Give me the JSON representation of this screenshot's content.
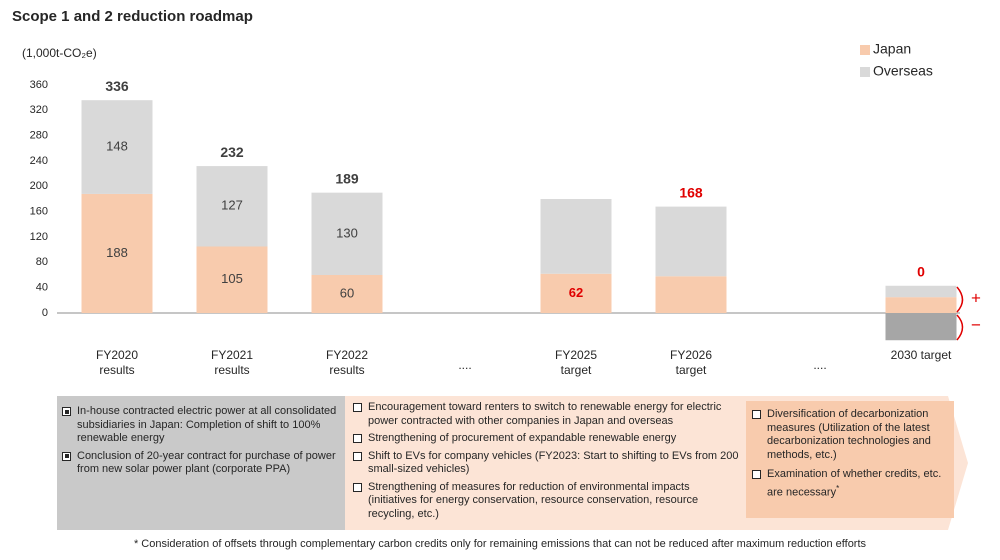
{
  "chart_data": {
    "type": "bar",
    "stacked": true,
    "title": "Scope 1 and 2 reduction roadmap",
    "y_label": "(1,000t-CO₂e)",
    "categories": [
      "FY2020 results",
      "FY2021 results",
      "FY2022 results",
      "....",
      "FY2025 target",
      "FY2026 target",
      "....",
      "2030 target"
    ],
    "series": [
      {
        "name": "Japan",
        "color": "#f8cbad",
        "values": [
          188,
          105,
          60,
          null,
          62,
          58,
          null,
          25
        ],
        "value_labels": [
          "188",
          "105",
          "60",
          null,
          "62",
          null,
          null,
          null
        ],
        "label_colors": [
          "#404040",
          "#404040",
          "#404040",
          null,
          "#e00000",
          null,
          null,
          null
        ]
      },
      {
        "name": "Overseas",
        "color": "#d9d9d9",
        "values": [
          148,
          127,
          130,
          null,
          118,
          110,
          null,
          18
        ],
        "value_labels": [
          "148",
          "127",
          "130",
          null,
          null,
          null,
          null,
          null
        ]
      }
    ],
    "offsets": {
      "color": "#a6a6a6",
      "values": [
        null,
        null,
        null,
        null,
        null,
        null,
        null,
        -43
      ]
    },
    "totals": {
      "values": [
        336,
        232,
        189,
        null,
        null,
        168,
        null,
        0
      ],
      "colors": [
        "#404040",
        "#404040",
        "#404040",
        null,
        null,
        "#e00000",
        null,
        "#e00000"
      ]
    },
    "ylim": [
      -50,
      360
    ],
    "yticks": [
      0,
      40,
      80,
      120,
      160,
      200,
      240,
      280,
      320,
      360
    ],
    "legend": "top-right",
    "annotations": [
      "+",
      "−"
    ]
  },
  "panels": [
    {
      "checked": true,
      "items": [
        "In-house contracted electric power at all consolidated subsidiaries in Japan: Completion of shift to 100% renewable energy",
        "Conclusion of 20-year contract for purchase of power from new solar power plant (corporate PPA)"
      ]
    },
    {
      "checked": false,
      "items": [
        "Encouragement toward renters to switch to renewable energy for electric power contracted with other companies in Japan and overseas",
        "Strengthening of procurement of expandable renewable energy",
        "Shift to EVs for company vehicles (FY2023: Start to shifting to EVs from 200 small-sized vehicles)",
        "Strengthening of measures for reduction of environmental impacts (initiatives for energy conservation, resource conservation, resource recycling, etc.)"
      ]
    },
    {
      "checked": false,
      "items": [
        "Diversification of decarbonization measures (Utilization of the latest decarbonization technologies and methods, etc.)",
        "Examination of whether credits, etc. are necessary"
      ],
      "note_mark": "*"
    }
  ],
  "footnote": "* Consideration of offsets through complementary carbon credits only for remaining emissions that can not be reduced after maximum reduction efforts"
}
